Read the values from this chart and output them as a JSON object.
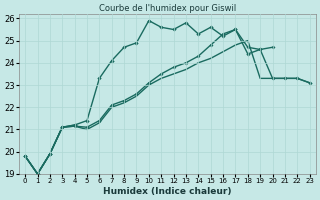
{
  "title": "Courbe de l'humidex pour Giswil",
  "xlabel": "Humidex (Indice chaleur)",
  "xlim": [
    -0.5,
    23.5
  ],
  "ylim": [
    19,
    26.2
  ],
  "yticks": [
    19,
    20,
    21,
    22,
    23,
    24,
    25,
    26
  ],
  "xticks": [
    0,
    1,
    2,
    3,
    4,
    5,
    6,
    7,
    8,
    9,
    10,
    11,
    12,
    13,
    14,
    15,
    16,
    17,
    18,
    19,
    20,
    21,
    22,
    23
  ],
  "bg_color": "#c6e8e6",
  "line_color": "#1a6b60",
  "grid_color": "#afd8d4",
  "series_upper": [
    19.8,
    19.0,
    19.9,
    21.1,
    21.2,
    21.4,
    23.3,
    24.1,
    24.7,
    24.9,
    25.9,
    25.6,
    25.5,
    25.8,
    25.3,
    25.6,
    25.2,
    25.5,
    24.4,
    24.6,
    23.3,
    23.3,
    23.3,
    23.1
  ],
  "series_mid": [
    19.8,
    19.0,
    19.9,
    21.1,
    21.15,
    21.1,
    21.4,
    22.1,
    22.3,
    22.6,
    23.1,
    23.5,
    23.8,
    24.0,
    24.3,
    24.8,
    25.3,
    25.5,
    24.7,
    24.6,
    24.7,
    null,
    null,
    null
  ],
  "series_lower": [
    19.8,
    19.0,
    19.9,
    21.1,
    21.15,
    21.0,
    21.3,
    22.0,
    22.2,
    22.5,
    23.0,
    23.3,
    23.5,
    23.7,
    24.0,
    24.2,
    24.5,
    24.8,
    25.0,
    23.3,
    23.3,
    23.3,
    23.3,
    23.1
  ],
  "series_base": [
    19.8,
    19.0,
    19.9,
    21.1,
    21.2,
    null,
    null,
    null,
    null,
    null,
    null,
    null,
    null,
    null,
    null,
    null,
    null,
    null,
    null,
    null,
    null,
    null,
    null,
    null
  ]
}
